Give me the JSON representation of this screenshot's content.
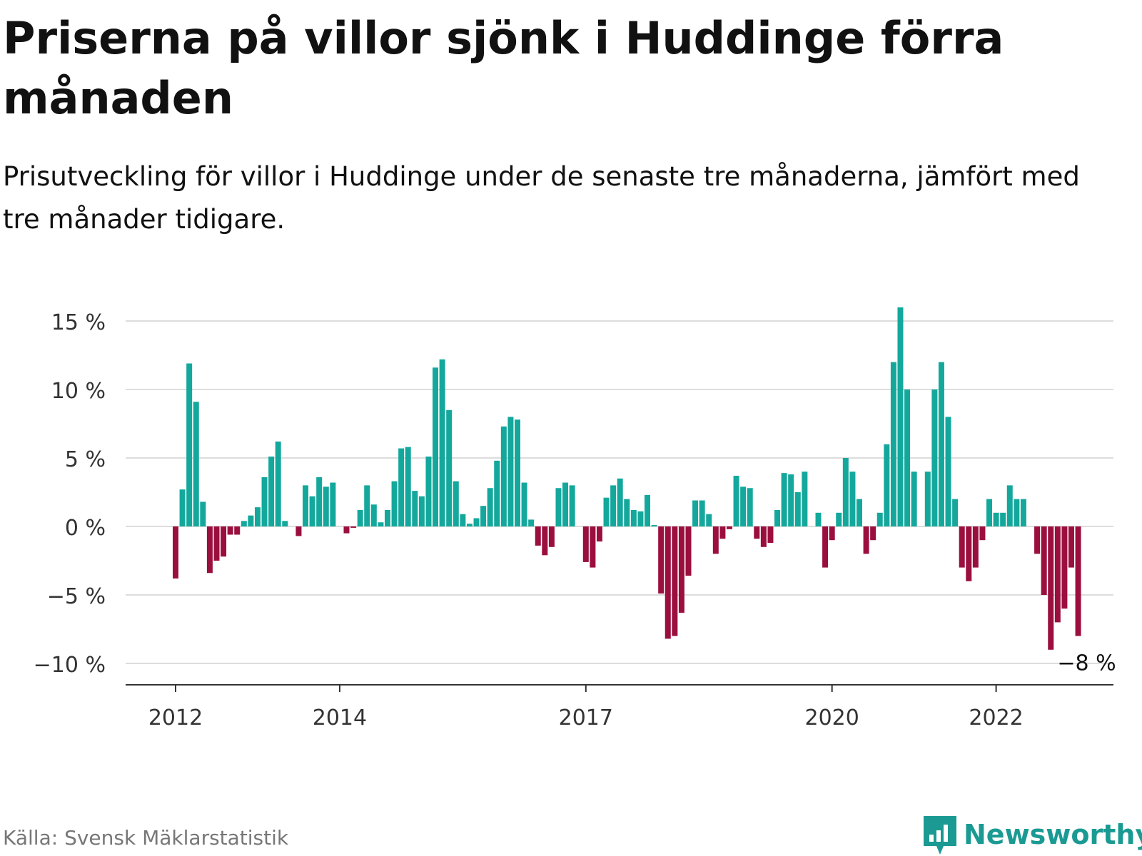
{
  "title": "Priserna på villor sjönk i Huddinge förra månaden",
  "subtitle": "Prisutveckling för villor i Huddinge under de senaste tre månaderna, jämfört med tre månader tidigare.",
  "source": "Källa: Svensk Mäklarstatistik",
  "brand": "Newsworthy",
  "colors": {
    "positive": "#14a89c",
    "negative": "#9b0f3e",
    "grid": "#dddddd",
    "axis": "#333333",
    "logo": "#1a9a93"
  },
  "icons": {
    "logo": "newsworthy-bar-chart-logo-icon"
  },
  "chart_data": {
    "type": "bar",
    "title": "",
    "xlabel": "",
    "ylabel": "",
    "ylim": [
      -11,
      16
    ],
    "y_ticks": [
      {
        "value": 15,
        "label": "15 %"
      },
      {
        "value": 10,
        "label": "10 %"
      },
      {
        "value": 5,
        "label": "5 %"
      },
      {
        "value": 0,
        "label": "0 %"
      },
      {
        "value": -5,
        "label": "−5 %"
      },
      {
        "value": -10,
        "label": "−10 %"
      }
    ],
    "x_ticks": [
      "2012",
      "2014",
      "2017",
      "2020",
      "2022"
    ],
    "grid": true,
    "first_period": "2012-01",
    "last_label": "−8 %",
    "values": [
      -3.8,
      2.7,
      11.9,
      9.1,
      1.8,
      -3.4,
      -2.5,
      -2.2,
      -0.6,
      -0.6,
      0.4,
      0.8,
      1.4,
      3.6,
      5.1,
      6.2,
      0.4,
      0.0,
      -0.7,
      3.0,
      2.2,
      3.6,
      2.9,
      3.2,
      0.0,
      -0.5,
      -0.1,
      1.2,
      3.0,
      1.6,
      0.3,
      1.2,
      3.3,
      5.7,
      5.8,
      2.6,
      2.2,
      5.1,
      11.6,
      12.2,
      8.5,
      3.3,
      0.9,
      0.2,
      0.6,
      1.5,
      2.8,
      4.8,
      7.3,
      8.0,
      7.8,
      3.2,
      0.5,
      -1.4,
      -2.1,
      -1.5,
      2.8,
      3.2,
      3.0,
      0.0,
      -2.6,
      -3.0,
      -1.1,
      2.1,
      3.0,
      3.5,
      2.0,
      1.2,
      1.1,
      2.3,
      0.1,
      -4.9,
      -8.2,
      -8.0,
      -6.3,
      -3.6,
      1.9,
      1.9,
      0.9,
      -2.0,
      -0.9,
      -0.2,
      3.7,
      2.9,
      2.8,
      -0.9,
      -1.5,
      -1.2,
      1.2,
      3.9,
      3.8,
      2.5,
      4.0,
      0.0,
      1.0,
      -3.0,
      -1.0,
      1.0,
      5.0,
      4.0,
      2.0,
      -2.0,
      -1.0,
      1.0,
      6.0,
      12.0,
      16.0,
      10.0,
      4.0,
      0.0,
      4.0,
      10.0,
      12.0,
      8.0,
      2.0,
      -3.0,
      -4.0,
      -3.0,
      -1.0,
      2.0,
      1.0,
      1.0,
      3.0,
      2.0,
      2.0,
      0.0,
      -2.0,
      -5.0,
      -9.0,
      -7.0,
      -6.0,
      -3.0,
      -8.0
    ]
  }
}
